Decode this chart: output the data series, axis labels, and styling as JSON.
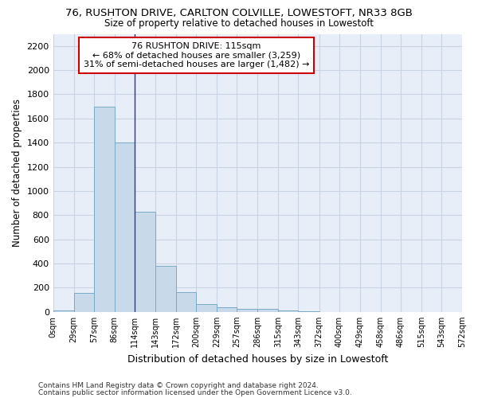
{
  "title1": "76, RUSHTON DRIVE, CARLTON COLVILLE, LOWESTOFT, NR33 8GB",
  "title2": "Size of property relative to detached houses in Lowestoft",
  "xlabel": "Distribution of detached houses by size in Lowestoft",
  "ylabel": "Number of detached properties",
  "bar_color": "#c8daea",
  "bar_edge_color": "#7aaac8",
  "vline_color": "#3030a0",
  "vline_x": 114,
  "annotation_line1": "76 RUSHTON DRIVE: 115sqm",
  "annotation_line2": "← 68% of detached houses are smaller (3,259)",
  "annotation_line3": "31% of semi-detached houses are larger (1,482) →",
  "annotation_box_color": "white",
  "annotation_box_edge_color": "#cc0000",
  "bin_edges": [
    0,
    29,
    57,
    86,
    114,
    143,
    172,
    200,
    229,
    257,
    286,
    315,
    343,
    372,
    400,
    429,
    458,
    486,
    515,
    543,
    572
  ],
  "bar_heights": [
    15,
    157,
    1700,
    1400,
    830,
    380,
    165,
    65,
    35,
    28,
    28,
    15,
    5,
    0,
    0,
    0,
    0,
    0,
    0,
    0
  ],
  "ylim": [
    0,
    2300
  ],
  "yticks": [
    0,
    200,
    400,
    600,
    800,
    1000,
    1200,
    1400,
    1600,
    1800,
    2000,
    2200
  ],
  "grid_color": "#c8d4e4",
  "bg_color": "#e8eef8",
  "footer1": "Contains HM Land Registry data © Crown copyright and database right 2024.",
  "footer2": "Contains public sector information licensed under the Open Government Licence v3.0."
}
